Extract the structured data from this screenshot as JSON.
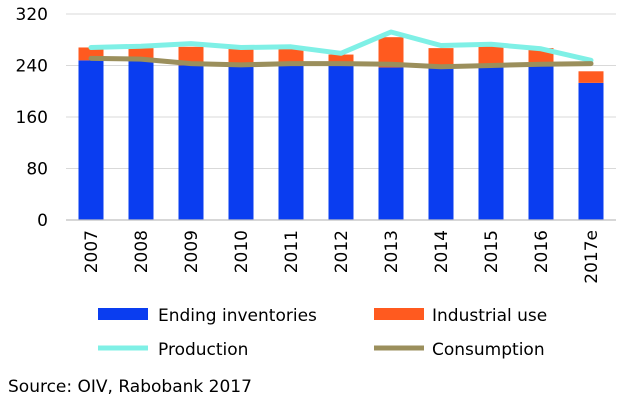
{
  "chart_data": {
    "type": "bar",
    "categories": [
      "2007",
      "2008",
      "2009",
      "2010",
      "2011",
      "2012",
      "2013",
      "2014",
      "2015",
      "2016",
      "2017e"
    ],
    "ylim": [
      0,
      320
    ],
    "yticks": [
      0,
      80,
      160,
      240,
      320
    ],
    "grid": true,
    "legend_position": "bottom",
    "series": [
      {
        "name": "Ending inventories",
        "kind": "bar",
        "stack": "main",
        "color": "#0a3df0",
        "values": [
          248,
          250,
          240,
          242,
          243,
          240,
          237,
          237,
          238,
          243,
          213
        ]
      },
      {
        "name": "Industrial use",
        "kind": "bar",
        "stack": "main",
        "color": "#ff5a1f",
        "values": [
          20,
          17,
          29,
          24,
          24,
          17,
          47,
          30,
          32,
          24,
          18
        ]
      },
      {
        "name": "Production",
        "kind": "line",
        "color": "#7ff0e6",
        "values": [
          268,
          270,
          274,
          268,
          269,
          259,
          292,
          271,
          273,
          266,
          248
        ]
      },
      {
        "name": "Consumption",
        "kind": "line",
        "color": "#9b8f5c",
        "values": [
          251,
          250,
          243,
          241,
          243,
          243,
          242,
          238,
          240,
          242,
          243
        ]
      }
    ],
    "source": "Source: OIV, Rabobank 2017"
  }
}
